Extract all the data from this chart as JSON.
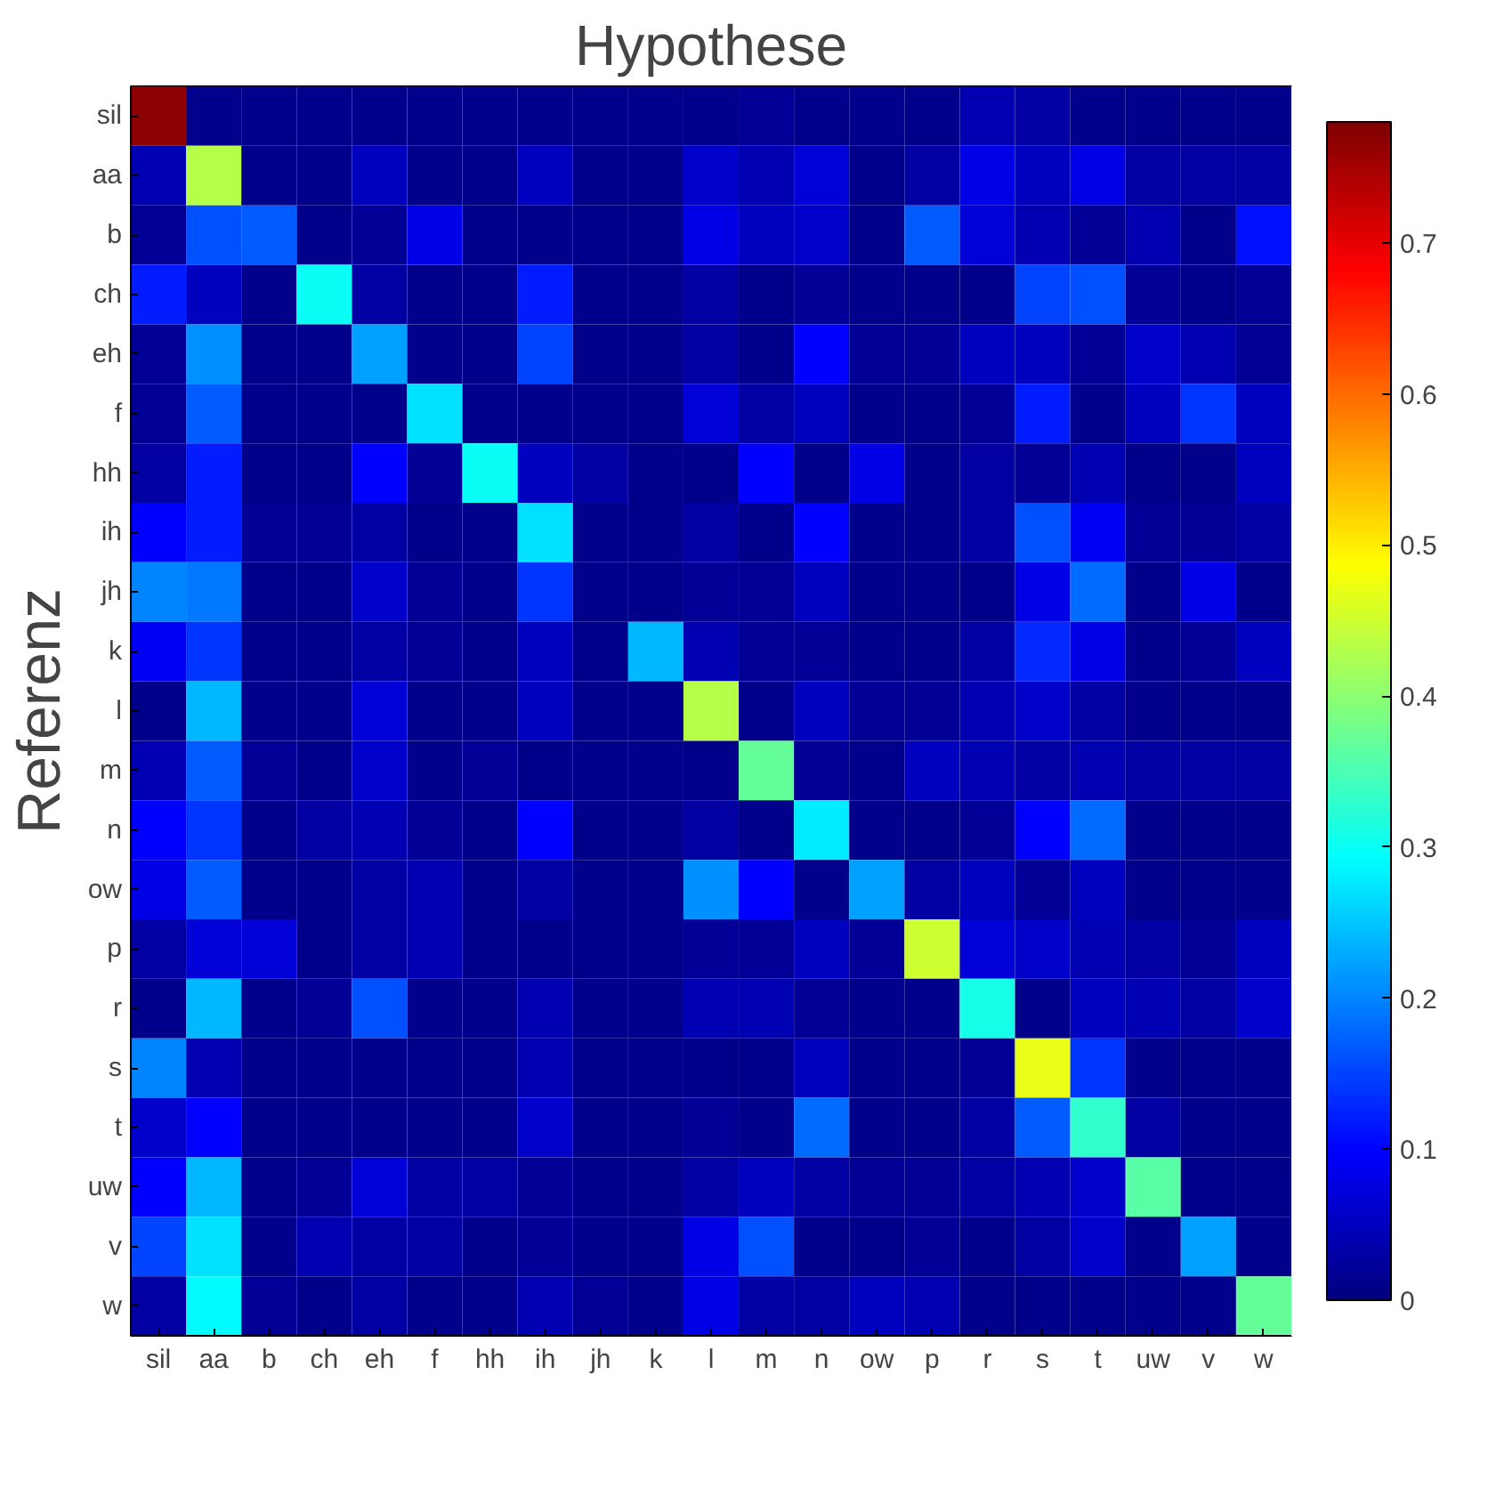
{
  "chart_data": {
    "type": "heatmap",
    "title": "Hypothese",
    "ylabel": "Referenz",
    "categories": [
      "sil",
      "aa",
      "b",
      "ch",
      "eh",
      "f",
      "hh",
      "ih",
      "jh",
      "k",
      "l",
      "m",
      "n",
      "ow",
      "p",
      "r",
      "s",
      "t",
      "uw",
      "v",
      "w"
    ],
    "y_categories": [
      "sil",
      "aa",
      "b",
      "ch",
      "eh",
      "f",
      "hh",
      "ih",
      "jh",
      "k",
      "l",
      "m",
      "n",
      "ow",
      "p",
      "r",
      "s",
      "t",
      "uw",
      "v",
      "w"
    ],
    "clim": [
      0,
      0.78
    ],
    "cticks": [
      0,
      0.1,
      0.2,
      0.3,
      0.4,
      0.5,
      0.6,
      0.7
    ],
    "cells": [
      [
        0.77,
        0.01,
        0.01,
        0.01,
        0.01,
        0.01,
        0.01,
        0.01,
        0.01,
        0.01,
        0.01,
        0.02,
        0.01,
        0.01,
        0.01,
        0.04,
        0.03,
        0.01,
        0.01,
        0.01,
        0.01
      ],
      [
        0.04,
        0.43,
        0.01,
        0.01,
        0.05,
        0.01,
        0.01,
        0.05,
        0.01,
        0.01,
        0.06,
        0.04,
        0.07,
        0.01,
        0.03,
        0.08,
        0.05,
        0.08,
        0.03,
        0.03,
        0.03
      ],
      [
        0.02,
        0.16,
        0.17,
        0.01,
        0.02,
        0.08,
        0.01,
        0.01,
        0.01,
        0.01,
        0.08,
        0.05,
        0.06,
        0.01,
        0.17,
        0.07,
        0.04,
        0.02,
        0.04,
        0.01,
        0.11
      ],
      [
        0.12,
        0.05,
        0.01,
        0.3,
        0.03,
        0.01,
        0.01,
        0.12,
        0.01,
        0.01,
        0.03,
        0.01,
        0.02,
        0.01,
        0.01,
        0.01,
        0.15,
        0.16,
        0.02,
        0.01,
        0.02
      ],
      [
        0.02,
        0.21,
        0.01,
        0.01,
        0.22,
        0.01,
        0.01,
        0.15,
        0.01,
        0.01,
        0.03,
        0.01,
        0.1,
        0.02,
        0.02,
        0.05,
        0.05,
        0.02,
        0.06,
        0.04,
        0.02
      ],
      [
        0.02,
        0.17,
        0.01,
        0.01,
        0.01,
        0.27,
        0.01,
        0.01,
        0.01,
        0.01,
        0.07,
        0.03,
        0.05,
        0.01,
        0.01,
        0.02,
        0.12,
        0.01,
        0.05,
        0.14,
        0.05
      ],
      [
        0.03,
        0.12,
        0.01,
        0.01,
        0.1,
        0.02,
        0.3,
        0.05,
        0.03,
        0.01,
        0.01,
        0.1,
        0.01,
        0.08,
        0.01,
        0.03,
        0.02,
        0.04,
        0.01,
        0.01,
        0.05
      ],
      [
        0.1,
        0.12,
        0.02,
        0.02,
        0.03,
        0.01,
        0.01,
        0.27,
        0.01,
        0.01,
        0.03,
        0.01,
        0.1,
        0.01,
        0.01,
        0.03,
        0.16,
        0.09,
        0.02,
        0.02,
        0.03
      ],
      [
        0.2,
        0.19,
        0.01,
        0.01,
        0.06,
        0.02,
        0.01,
        0.14,
        0.01,
        0.01,
        0.02,
        0.02,
        0.05,
        0.01,
        0.01,
        0.01,
        0.08,
        0.18,
        0.01,
        0.08,
        0.01
      ],
      [
        0.09,
        0.14,
        0.01,
        0.01,
        0.03,
        0.02,
        0.01,
        0.05,
        0.01,
        0.24,
        0.04,
        0.02,
        0.02,
        0.01,
        0.01,
        0.03,
        0.13,
        0.08,
        0.01,
        0.02,
        0.05
      ],
      [
        0.01,
        0.24,
        0.01,
        0.01,
        0.07,
        0.01,
        0.01,
        0.05,
        0.01,
        0.01,
        0.43,
        0.01,
        0.05,
        0.02,
        0.02,
        0.04,
        0.06,
        0.03,
        0.01,
        0.01,
        0.01
      ],
      [
        0.04,
        0.17,
        0.02,
        0.01,
        0.06,
        0.01,
        0.02,
        0.01,
        0.01,
        0.01,
        0.01,
        0.37,
        0.02,
        0.01,
        0.05,
        0.04,
        0.03,
        0.04,
        0.03,
        0.03,
        0.03
      ],
      [
        0.1,
        0.14,
        0.01,
        0.03,
        0.04,
        0.02,
        0.01,
        0.1,
        0.01,
        0.01,
        0.03,
        0.01,
        0.28,
        0.01,
        0.01,
        0.02,
        0.1,
        0.18,
        0.01,
        0.01,
        0.01
      ],
      [
        0.08,
        0.17,
        0.01,
        0.01,
        0.03,
        0.04,
        0.01,
        0.03,
        0.01,
        0.01,
        0.21,
        0.1,
        0.01,
        0.22,
        0.03,
        0.05,
        0.02,
        0.05,
        0.01,
        0.01,
        0.01
      ],
      [
        0.03,
        0.07,
        0.07,
        0.01,
        0.03,
        0.04,
        0.01,
        0.01,
        0.01,
        0.01,
        0.02,
        0.02,
        0.05,
        0.02,
        0.45,
        0.07,
        0.06,
        0.04,
        0.03,
        0.02,
        0.05
      ],
      [
        0.01,
        0.24,
        0.01,
        0.02,
        0.16,
        0.01,
        0.01,
        0.04,
        0.01,
        0.01,
        0.04,
        0.04,
        0.02,
        0.01,
        0.01,
        0.31,
        0.01,
        0.05,
        0.04,
        0.03,
        0.06
      ],
      [
        0.2,
        0.04,
        0.01,
        0.01,
        0.01,
        0.01,
        0.01,
        0.04,
        0.01,
        0.01,
        0.01,
        0.01,
        0.05,
        0.01,
        0.01,
        0.02,
        0.47,
        0.14,
        0.01,
        0.01,
        0.01
      ],
      [
        0.06,
        0.1,
        0.01,
        0.01,
        0.01,
        0.01,
        0.01,
        0.06,
        0.01,
        0.01,
        0.02,
        0.01,
        0.18,
        0.01,
        0.01,
        0.03,
        0.17,
        0.33,
        0.03,
        0.01,
        0.01
      ],
      [
        0.1,
        0.24,
        0.01,
        0.02,
        0.07,
        0.03,
        0.03,
        0.02,
        0.01,
        0.01,
        0.03,
        0.05,
        0.03,
        0.02,
        0.02,
        0.03,
        0.04,
        0.06,
        0.36,
        0.01,
        0.01
      ],
      [
        0.15,
        0.27,
        0.01,
        0.04,
        0.03,
        0.03,
        0.01,
        0.02,
        0.01,
        0.01,
        0.08,
        0.16,
        0.01,
        0.01,
        0.02,
        0.01,
        0.03,
        0.06,
        0.01,
        0.22,
        0.01
      ],
      [
        0.03,
        0.29,
        0.02,
        0.01,
        0.03,
        0.01,
        0.01,
        0.04,
        0.02,
        0.01,
        0.08,
        0.03,
        0.03,
        0.05,
        0.04,
        0.01,
        0.01,
        0.01,
        0.01,
        0.01,
        0.37
      ]
    ]
  }
}
